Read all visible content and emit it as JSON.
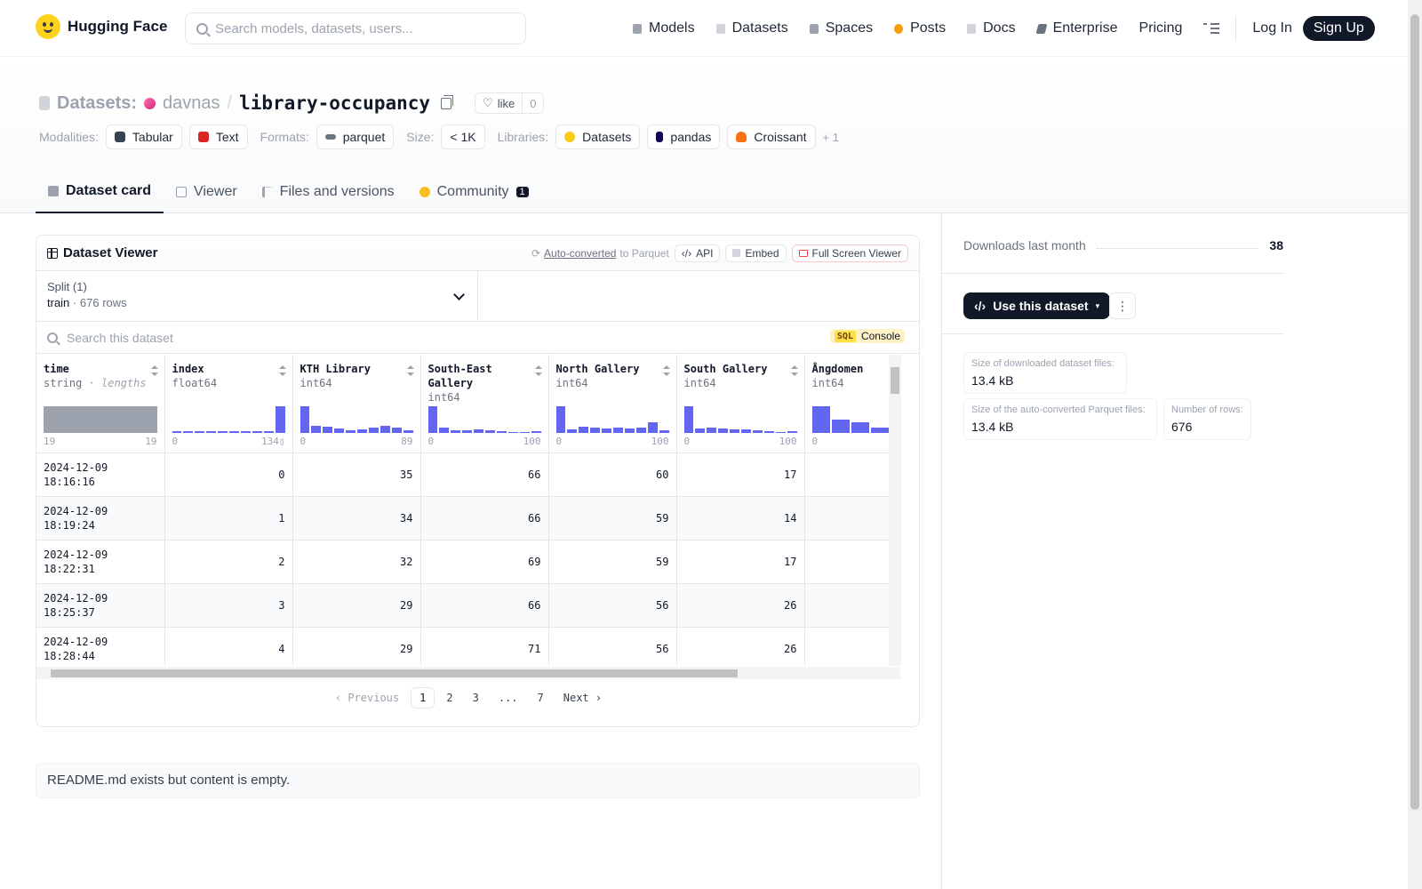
{
  "brand": {
    "name": "Hugging Face"
  },
  "search": {
    "placeholder": "Search models, datasets, users..."
  },
  "nav": {
    "links": [
      {
        "label": "Models",
        "icon": "cube-icon",
        "color": "#6b7280"
      },
      {
        "label": "Datasets",
        "icon": "database-icon",
        "color": "#9ca3af"
      },
      {
        "label": "Spaces",
        "icon": "grid-icon",
        "color": "#9ca3af"
      },
      {
        "label": "Posts",
        "icon": "posts-icon",
        "color": "#f59e0b"
      },
      {
        "label": "Docs",
        "icon": "docs-icon",
        "color": "#9ca3af"
      },
      {
        "label": "Enterprise",
        "icon": "enterprise-icon",
        "color": "#6b7280"
      },
      {
        "label": "Pricing"
      }
    ],
    "login": "Log In",
    "signup": "Sign Up"
  },
  "header": {
    "section": "Datasets:",
    "user": "davnas",
    "slash": "/",
    "repo": "library-occupancy",
    "like_label": "like",
    "like_count": "0",
    "modalities_label": "Modalities:",
    "modalities": [
      {
        "label": "Tabular",
        "color": "#374151"
      },
      {
        "label": "Text",
        "color": "#dc2626"
      }
    ],
    "formats_label": "Formats:",
    "formats": [
      {
        "label": "parquet"
      }
    ],
    "size_label": "Size:",
    "size": "< 1K",
    "libraries_label": "Libraries:",
    "libraries": [
      {
        "label": "Datasets",
        "color": "#facc15"
      },
      {
        "label": "pandas",
        "color": "#150458"
      },
      {
        "label": "Croissant",
        "color": "#f97316"
      }
    ],
    "libraries_more": "+ 1"
  },
  "tabs": [
    {
      "label": "Dataset card",
      "active": true
    },
    {
      "label": "Viewer"
    },
    {
      "label": "Files and versions"
    },
    {
      "label": "Community",
      "badge": "1"
    }
  ],
  "viewer": {
    "title": "Dataset Viewer",
    "auto_link": "Auto-converted",
    "auto_rest": "to Parquet",
    "api": "API",
    "embed": "Embed",
    "fullscreen": "Full Screen Viewer",
    "split_label": "Split (1)",
    "split_value": "train",
    "split_dot": "·",
    "split_rows": "676 rows",
    "search_placeholder": "Search this dataset",
    "sql_tag": "SQL",
    "sql_label": "Console",
    "columns": [
      {
        "name": "time",
        "type": "string",
        "type_extra": "· lengths",
        "min": "19",
        "max": "19",
        "hist": [
          1
        ],
        "grey": true
      },
      {
        "name": "index",
        "type": "float64",
        "min": "0",
        "max": "134▯",
        "hist": [
          0.04,
          0.04,
          0.04,
          0.04,
          0.04,
          0.04,
          0.04,
          0.04,
          0.04,
          1
        ]
      },
      {
        "name": "KTH Library",
        "type": "int64",
        "min": "0",
        "max": "89",
        "hist": [
          1,
          0.25,
          0.22,
          0.14,
          0.08,
          0.12,
          0.17,
          0.25,
          0.2,
          0.08
        ]
      },
      {
        "name": "South-East Gallery",
        "type": "int64",
        "min": "0",
        "max": "100",
        "hist": [
          1,
          0.18,
          0.1,
          0.1,
          0.12,
          0.1,
          0.06,
          0.03,
          0.01,
          0.04
        ]
      },
      {
        "name": "North Gallery",
        "type": "int64",
        "min": "0",
        "max": "100",
        "hist": [
          1,
          0.12,
          0.22,
          0.2,
          0.14,
          0.18,
          0.16,
          0.2,
          0.4,
          0.1
        ]
      },
      {
        "name": "South Gallery",
        "type": "int64",
        "min": "0",
        "max": "100",
        "hist": [
          1,
          0.16,
          0.18,
          0.14,
          0.12,
          0.12,
          0.1,
          0.06,
          0.02,
          0.04
        ]
      },
      {
        "name": "Ångdomen",
        "type": "int64",
        "min": "0",
        "max": "",
        "hist": [
          1,
          0.5,
          0.4,
          0.2,
          0.02,
          0.02,
          0.02,
          0.02,
          0.02,
          0.02
        ]
      }
    ],
    "rows": [
      {
        "time_date": "2024-12-09",
        "time_clock": "18:16:16",
        "index": "0",
        "kth": "35",
        "se": "66",
        "north": "60",
        "south": "17"
      },
      {
        "time_date": "2024-12-09",
        "time_clock": "18:19:24",
        "index": "1",
        "kth": "34",
        "se": "66",
        "north": "59",
        "south": "14"
      },
      {
        "time_date": "2024-12-09",
        "time_clock": "18:22:31",
        "index": "2",
        "kth": "32",
        "se": "69",
        "north": "59",
        "south": "17"
      },
      {
        "time_date": "2024-12-09",
        "time_clock": "18:25:37",
        "index": "3",
        "kth": "29",
        "se": "66",
        "north": "56",
        "south": "26"
      },
      {
        "time_date": "2024-12-09",
        "time_clock": "18:28:44",
        "index": "4",
        "kth": "29",
        "se": "71",
        "north": "56",
        "south": "26"
      }
    ],
    "pager": {
      "prev": "Previous",
      "pages": [
        "1",
        "2",
        "3",
        "...",
        "7"
      ],
      "current": "1",
      "next": "Next"
    }
  },
  "readme": "README.md exists but content is empty.",
  "sidebar": {
    "downloads_label": "Downloads last month",
    "downloads": "38",
    "use_button": "Use this dataset",
    "more": "⋮",
    "stats": [
      {
        "label": "Size of downloaded dataset files:",
        "value": "13.4 kB"
      },
      {
        "label": "Size of the auto-converted Parquet files:",
        "value": "13.4 kB"
      },
      {
        "label": "Number of rows:",
        "value": "676"
      }
    ]
  }
}
